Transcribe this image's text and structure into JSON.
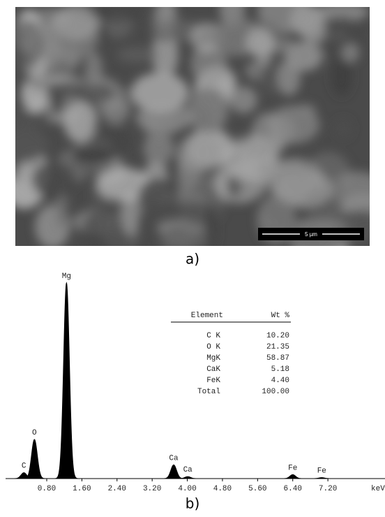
{
  "figure_a": {
    "caption": "a)",
    "scale_bar": "5 µm"
  },
  "figure_b": {
    "caption": "b)",
    "chart_data": {
      "type": "spectrum",
      "x_axis_label": "keV",
      "xlim": [
        0,
        8.5
      ],
      "xticks": [
        {
          "value": 0.8,
          "label": "0.80"
        },
        {
          "value": 1.6,
          "label": "1.60"
        },
        {
          "value": 2.4,
          "label": "2.40"
        },
        {
          "value": 3.2,
          "label": "3.20"
        },
        {
          "value": 4.0,
          "label": "4.00"
        },
        {
          "value": 4.8,
          "label": "4.80"
        },
        {
          "value": 5.6,
          "label": "5.60"
        },
        {
          "value": 6.4,
          "label": "6.40"
        },
        {
          "value": 7.2,
          "label": "7.20"
        }
      ],
      "ylim": [
        0,
        100
      ],
      "color": "#000000",
      "peaks": [
        {
          "label": "C",
          "energy": 0.28,
          "height": 3
        },
        {
          "label": "O",
          "energy": 0.52,
          "height": 20
        },
        {
          "label": "Mg",
          "energy": 1.25,
          "height": 100
        },
        {
          "label": "Ca",
          "energy": 3.69,
          "height": 7
        },
        {
          "label": "Ca",
          "energy": 4.01,
          "height": 1
        },
        {
          "label": "Fe",
          "energy": 6.4,
          "height": 2
        },
        {
          "label": "Fe",
          "energy": 7.06,
          "height": 0.5
        }
      ]
    },
    "table": {
      "header": [
        "Element",
        "Wt %"
      ],
      "rows": [
        [
          "C K",
          "10.20"
        ],
        [
          "O K",
          "21.35"
        ],
        [
          "MgK",
          "58.87"
        ],
        [
          "CaK",
          "5.18"
        ],
        [
          "FeK",
          "4.40"
        ],
        [
          "Total",
          "100.00"
        ]
      ]
    }
  }
}
